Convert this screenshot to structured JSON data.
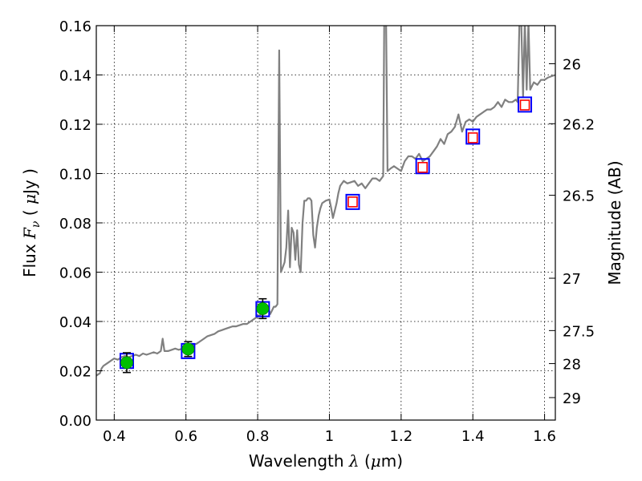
{
  "chart_data": {
    "type": "line",
    "x_axis": {
      "label_parts": [
        "Wavelength ",
        "λ",
        " (",
        "μ",
        "m)"
      ],
      "range": [
        0.35,
        1.63
      ],
      "ticks": [
        0.4,
        0.6,
        0.8,
        1.0,
        1.2,
        1.4,
        1.6
      ],
      "tick_labels": [
        "0.4",
        "0.6",
        "0.8",
        "1",
        "1.2",
        "1.4",
        "1.6"
      ]
    },
    "y_axis": {
      "label_parts": [
        "Flux ",
        "F",
        "ν",
        " ( ",
        "μ",
        "Jy )"
      ],
      "range": [
        0.0,
        0.16
      ],
      "ticks": [
        0.0,
        0.02,
        0.04,
        0.06,
        0.08,
        0.1,
        0.12,
        0.14,
        0.16
      ],
      "tick_labels": [
        "0.00",
        "0.02",
        "0.04",
        "0.06",
        "0.08",
        "0.10",
        "0.12",
        "0.14",
        "0.16"
      ]
    },
    "y2_axis": {
      "label": "Magnitude (AB)",
      "ticks": [
        26,
        26.2,
        26.5,
        27,
        27.5,
        28,
        29
      ],
      "tick_labels": [
        "26",
        "26.2",
        "26.5",
        "27",
        "27.5",
        "28",
        "29"
      ]
    },
    "grid": true,
    "series": [
      {
        "kind": "line",
        "color": "#808080",
        "points": [
          [
            0.35,
            0.018
          ],
          [
            0.36,
            0.019
          ],
          [
            0.365,
            0.021
          ],
          [
            0.37,
            0.022
          ],
          [
            0.38,
            0.023
          ],
          [
            0.39,
            0.024
          ],
          [
            0.4,
            0.025
          ],
          [
            0.41,
            0.0245
          ],
          [
            0.42,
            0.0255
          ],
          [
            0.43,
            0.026
          ],
          [
            0.44,
            0.0255
          ],
          [
            0.45,
            0.026
          ],
          [
            0.46,
            0.0265
          ],
          [
            0.47,
            0.026
          ],
          [
            0.48,
            0.027
          ],
          [
            0.49,
            0.0265
          ],
          [
            0.5,
            0.027
          ],
          [
            0.51,
            0.0275
          ],
          [
            0.52,
            0.027
          ],
          [
            0.53,
            0.028
          ],
          [
            0.535,
            0.033
          ],
          [
            0.54,
            0.028
          ],
          [
            0.55,
            0.028
          ],
          [
            0.56,
            0.0285
          ],
          [
            0.57,
            0.029
          ],
          [
            0.58,
            0.0285
          ],
          [
            0.59,
            0.029
          ],
          [
            0.6,
            0.0295
          ],
          [
            0.61,
            0.03
          ],
          [
            0.62,
            0.0305
          ],
          [
            0.63,
            0.031
          ],
          [
            0.64,
            0.032
          ],
          [
            0.65,
            0.033
          ],
          [
            0.66,
            0.034
          ],
          [
            0.67,
            0.0345
          ],
          [
            0.68,
            0.035
          ],
          [
            0.69,
            0.036
          ],
          [
            0.7,
            0.0365
          ],
          [
            0.71,
            0.037
          ],
          [
            0.72,
            0.0375
          ],
          [
            0.73,
            0.038
          ],
          [
            0.74,
            0.038
          ],
          [
            0.75,
            0.0385
          ],
          [
            0.76,
            0.039
          ],
          [
            0.77,
            0.039
          ],
          [
            0.78,
            0.04
          ],
          [
            0.79,
            0.041
          ],
          [
            0.8,
            0.042
          ],
          [
            0.81,
            0.043
          ],
          [
            0.82,
            0.044
          ],
          [
            0.83,
            0.045
          ],
          [
            0.835,
            0.043
          ],
          [
            0.84,
            0.0445
          ],
          [
            0.845,
            0.046
          ],
          [
            0.85,
            0.046
          ],
          [
            0.855,
            0.047
          ],
          [
            0.86,
            0.15
          ],
          [
            0.865,
            0.06
          ],
          [
            0.87,
            0.062
          ],
          [
            0.875,
            0.064
          ],
          [
            0.88,
            0.07
          ],
          [
            0.885,
            0.085
          ],
          [
            0.89,
            0.062
          ],
          [
            0.895,
            0.078
          ],
          [
            0.9,
            0.076
          ],
          [
            0.905,
            0.065
          ],
          [
            0.91,
            0.077
          ],
          [
            0.915,
            0.063
          ],
          [
            0.92,
            0.06
          ],
          [
            0.925,
            0.08
          ],
          [
            0.93,
            0.089
          ],
          [
            0.935,
            0.089
          ],
          [
            0.94,
            0.09
          ],
          [
            0.945,
            0.09
          ],
          [
            0.95,
            0.089
          ],
          [
            0.955,
            0.075
          ],
          [
            0.96,
            0.07
          ],
          [
            0.965,
            0.078
          ],
          [
            0.97,
            0.083
          ],
          [
            0.975,
            0.086
          ],
          [
            0.98,
            0.088
          ],
          [
            0.99,
            0.089
          ],
          [
            1.0,
            0.0895
          ],
          [
            1.005,
            0.086
          ],
          [
            1.01,
            0.082
          ],
          [
            1.015,
            0.085
          ],
          [
            1.02,
            0.088
          ],
          [
            1.025,
            0.092
          ],
          [
            1.03,
            0.095
          ],
          [
            1.04,
            0.097
          ],
          [
            1.05,
            0.096
          ],
          [
            1.06,
            0.0965
          ],
          [
            1.07,
            0.097
          ],
          [
            1.08,
            0.095
          ],
          [
            1.09,
            0.096
          ],
          [
            1.1,
            0.094
          ],
          [
            1.11,
            0.096
          ],
          [
            1.12,
            0.098
          ],
          [
            1.13,
            0.098
          ],
          [
            1.14,
            0.097
          ],
          [
            1.15,
            0.099
          ],
          [
            1.153,
            0.165
          ],
          [
            1.158,
            0.165
          ],
          [
            1.162,
            0.101
          ],
          [
            1.17,
            0.102
          ],
          [
            1.18,
            0.103
          ],
          [
            1.19,
            0.102
          ],
          [
            1.2,
            0.101
          ],
          [
            1.21,
            0.105
          ],
          [
            1.22,
            0.107
          ],
          [
            1.23,
            0.107
          ],
          [
            1.24,
            0.106
          ],
          [
            1.25,
            0.108
          ],
          [
            1.26,
            0.105
          ],
          [
            1.27,
            0.106
          ],
          [
            1.28,
            0.107
          ],
          [
            1.29,
            0.109
          ],
          [
            1.3,
            0.111
          ],
          [
            1.31,
            0.114
          ],
          [
            1.32,
            0.112
          ],
          [
            1.33,
            0.116
          ],
          [
            1.34,
            0.117
          ],
          [
            1.35,
            0.119
          ],
          [
            1.36,
            0.124
          ],
          [
            1.37,
            0.117
          ],
          [
            1.38,
            0.121
          ],
          [
            1.39,
            0.122
          ],
          [
            1.4,
            0.121
          ],
          [
            1.41,
            0.123
          ],
          [
            1.42,
            0.124
          ],
          [
            1.43,
            0.125
          ],
          [
            1.44,
            0.126
          ],
          [
            1.45,
            0.126
          ],
          [
            1.46,
            0.127
          ],
          [
            1.47,
            0.129
          ],
          [
            1.48,
            0.127
          ],
          [
            1.49,
            0.13
          ],
          [
            1.5,
            0.129
          ],
          [
            1.51,
            0.129
          ],
          [
            1.52,
            0.13
          ],
          [
            1.525,
            0.129
          ],
          [
            1.53,
            0.165
          ],
          [
            1.535,
            0.165
          ],
          [
            1.54,
            0.131
          ],
          [
            1.545,
            0.165
          ],
          [
            1.55,
            0.134
          ],
          [
            1.555,
            0.165
          ],
          [
            1.56,
            0.134
          ],
          [
            1.57,
            0.137
          ],
          [
            1.58,
            0.136
          ],
          [
            1.59,
            0.138
          ],
          [
            1.6,
            0.138
          ],
          [
            1.61,
            0.139
          ],
          [
            1.62,
            0.1395
          ],
          [
            1.63,
            0.14
          ]
        ]
      },
      {
        "kind": "observed",
        "marker": "circle",
        "color": "#00bf00",
        "points": [
          {
            "x": 0.435,
            "y": 0.0233,
            "err": 0.004
          },
          {
            "x": 0.606,
            "y": 0.0288,
            "err": 0.003
          },
          {
            "x": 0.814,
            "y": 0.0452,
            "err": 0.004
          }
        ]
      },
      {
        "kind": "model",
        "marker": "square",
        "color": "#0000ff",
        "points": [
          {
            "x": 0.435,
            "y": 0.024
          },
          {
            "x": 0.606,
            "y": 0.028
          },
          {
            "x": 0.814,
            "y": 0.045
          },
          {
            "x": 1.065,
            "y": 0.0885
          },
          {
            "x": 1.26,
            "y": 0.103
          },
          {
            "x": 1.4,
            "y": 0.115
          },
          {
            "x": 1.545,
            "y": 0.128
          }
        ]
      },
      {
        "kind": "upper",
        "marker": "square-open",
        "color": "#ff0000",
        "points": [
          {
            "x": 1.065,
            "y": 0.0885
          },
          {
            "x": 1.26,
            "y": 0.1025
          },
          {
            "x": 1.4,
            "y": 0.1145
          },
          {
            "x": 1.545,
            "y": 0.1278
          }
        ]
      }
    ]
  }
}
